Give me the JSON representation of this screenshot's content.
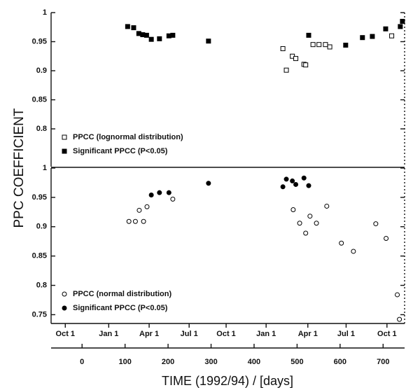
{
  "chart_data": [
    {
      "type": "scatter",
      "ylabel": "PPC COEFFICIENT",
      "ylim": [
        0.735,
        1
      ],
      "yticks": [
        1,
        0.95,
        0.9,
        0.85,
        0.8
      ],
      "legend": "lower left",
      "series": [
        {
          "name": "PPCC (lognormal distribution)",
          "marker": "open-square",
          "color": "#000000",
          "x": [
            467,
            475,
            489,
            497,
            516,
            520,
            537,
            551,
            566,
            576,
            720
          ],
          "values": [
            0.938,
            0.901,
            0.925,
            0.921,
            0.911,
            0.91,
            0.945,
            0.945,
            0.945,
            0.941,
            0.96
          ]
        },
        {
          "name": "Significant PPCC (P<0.05)",
          "marker": "filled-square",
          "color": "#000000",
          "x": [
            106,
            120,
            132,
            141,
            150,
            161,
            180,
            202,
            211,
            294,
            527,
            613,
            652,
            675,
            706,
            740,
            745
          ],
          "values": [
            0.976,
            0.974,
            0.964,
            0.962,
            0.961,
            0.954,
            0.955,
            0.96,
            0.961,
            0.951,
            0.961,
            0.944,
            0.957,
            0.959,
            0.972,
            0.976,
            0.985
          ]
        }
      ]
    },
    {
      "type": "scatter",
      "xlabel": "TIME (1992/94) / [days]",
      "xlim": [
        -72,
        750
      ],
      "xticks": [
        0,
        100,
        200,
        300,
        400,
        500,
        600,
        700
      ],
      "x2ticks": [
        {
          "value": -39,
          "label": "Oct 1"
        },
        {
          "value": 62,
          "label": "Jan 1"
        },
        {
          "value": 156,
          "label": "Apr 1"
        },
        {
          "value": 249,
          "label": "Jul 1"
        },
        {
          "value": 335,
          "label": "Oct 1"
        },
        {
          "value": 428,
          "label": "Jan 1"
        },
        {
          "value": 525,
          "label": "Apr 1"
        },
        {
          "value": 614,
          "label": "Jul 1"
        },
        {
          "value": 709,
          "label": "Oct 1"
        }
      ],
      "ylim": [
        0.735,
        1
      ],
      "yticks": [
        1,
        0.95,
        0.9,
        0.85,
        0.8,
        0.75
      ],
      "legend": "lower left",
      "series": [
        {
          "name": "PPCC (normal distribution)",
          "marker": "open-circle",
          "color": "#000000",
          "x": [
            109,
            124,
            133,
            143,
            151,
            211,
            491,
            506,
            520,
            530,
            545,
            569,
            603,
            631,
            683,
            707,
            733,
            738
          ],
          "values": [
            0.909,
            0.909,
            0.928,
            0.909,
            0.934,
            0.947,
            0.929,
            0.906,
            0.889,
            0.918,
            0.906,
            0.935,
            0.872,
            0.858,
            0.905,
            0.88,
            0.784,
            0.742
          ]
        },
        {
          "name": "Significant PPCC (P<0.05)",
          "marker": "filled-circle",
          "color": "#000000",
          "x": [
            161,
            180,
            202,
            294,
            467,
            475,
            489,
            497,
            516,
            527
          ],
          "values": [
            0.954,
            0.958,
            0.958,
            0.974,
            0.968,
            0.981,
            0.978,
            0.972,
            0.983,
            0.97
          ]
        }
      ]
    }
  ]
}
